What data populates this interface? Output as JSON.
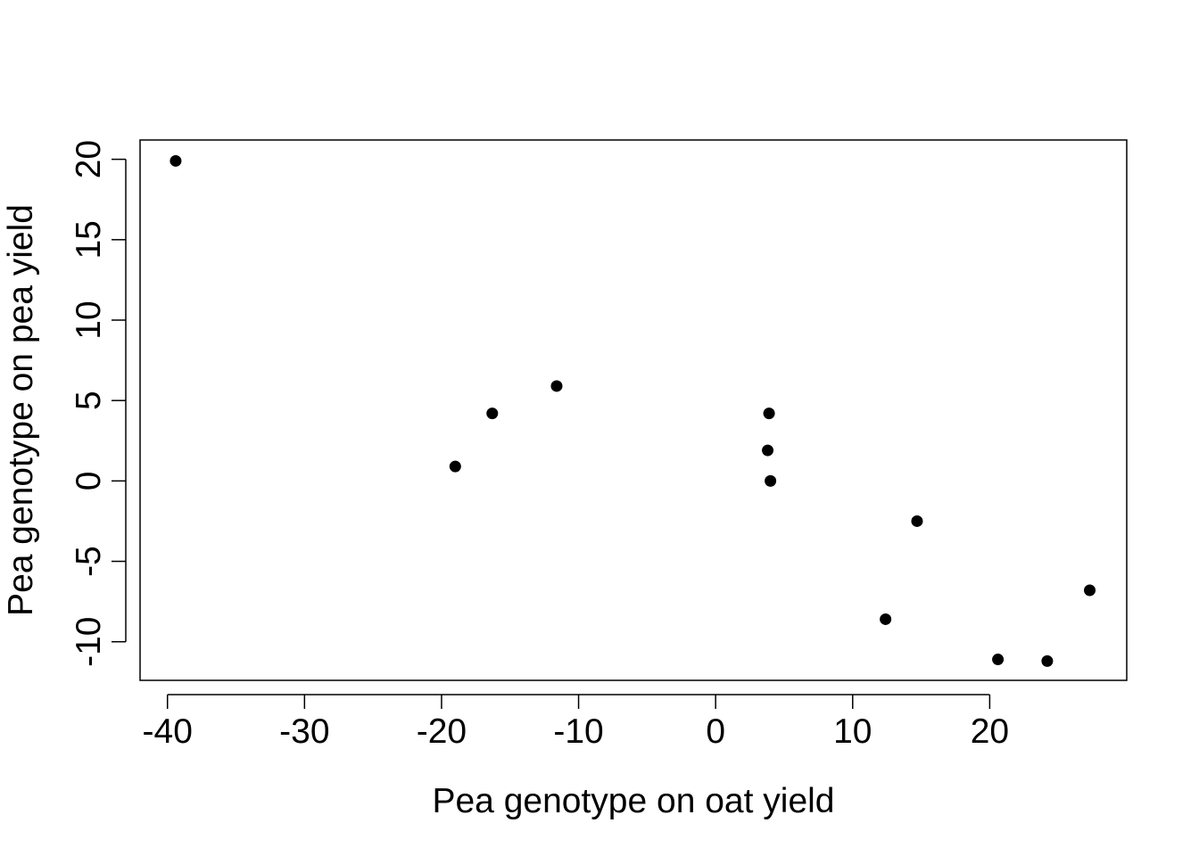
{
  "chart_data": {
    "type": "scatter",
    "title": "",
    "xlabel": "Pea genotype on oat yield",
    "ylabel": "Pea genotype on pea yield",
    "xlim": [
      -42,
      30
    ],
    "ylim": [
      -12.4,
      21.2
    ],
    "xticks": [
      -40,
      -30,
      -20,
      -10,
      0,
      10,
      20
    ],
    "yticks": [
      -10,
      -5,
      0,
      5,
      10,
      15,
      20
    ],
    "grid": false,
    "legend": "none",
    "point_color": "#000000",
    "points": [
      {
        "x": -39.4,
        "y": 19.9
      },
      {
        "x": -19.0,
        "y": 0.9
      },
      {
        "x": -16.3,
        "y": 4.2
      },
      {
        "x": -11.6,
        "y": 5.9
      },
      {
        "x": 3.9,
        "y": 4.2
      },
      {
        "x": 3.8,
        "y": 1.9
      },
      {
        "x": 4.0,
        "y": 0.0
      },
      {
        "x": 12.4,
        "y": -8.6
      },
      {
        "x": 14.7,
        "y": -2.5
      },
      {
        "x": 20.6,
        "y": -11.1
      },
      {
        "x": 24.2,
        "y": -11.2
      },
      {
        "x": 27.3,
        "y": -6.8
      }
    ]
  }
}
